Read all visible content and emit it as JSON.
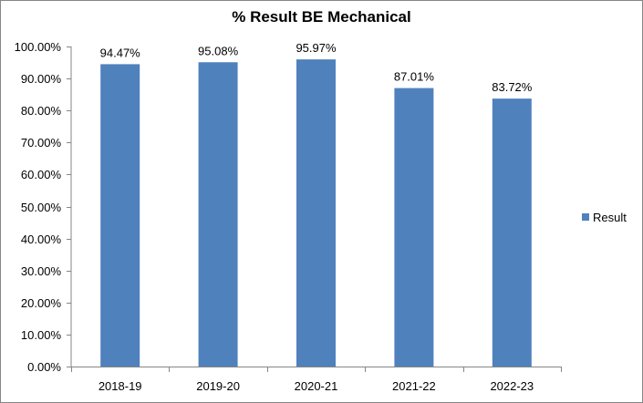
{
  "chart_data": {
    "type": "bar",
    "title": "% Result BE Mechanical",
    "xlabel": "",
    "ylabel": "",
    "categories": [
      "2018-19",
      "2019-20",
      "2020-21",
      "2021-22",
      "2022-23"
    ],
    "series": [
      {
        "name": "Result",
        "values": [
          94.47,
          95.08,
          95.97,
          87.01,
          83.72
        ],
        "labels": [
          "94.47%",
          "95.08%",
          "95.97%",
          "87.01%",
          "83.72%"
        ],
        "color": "#4F81BD"
      }
    ],
    "ylim": [
      0,
      100
    ],
    "yticks": [
      0,
      10,
      20,
      30,
      40,
      50,
      60,
      70,
      80,
      90,
      100
    ],
    "ytick_labels": [
      "0.00%",
      "10.00%",
      "20.00%",
      "30.00%",
      "40.00%",
      "50.00%",
      "60.00%",
      "70.00%",
      "80.00%",
      "90.00%",
      "100.00%"
    ],
    "grid": false,
    "legend": "right"
  }
}
